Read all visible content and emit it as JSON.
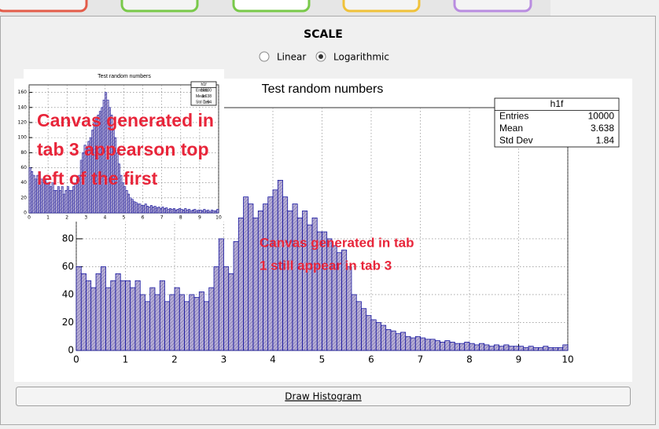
{
  "scale": {
    "title": "SCALE",
    "options": [
      "Linear",
      "Logarithmic"
    ],
    "selected": 1
  },
  "canvas_main": {
    "type": "histogram",
    "title": "Test random numbers",
    "bins": [
      0,
      0.1,
      0.2,
      0.3,
      0.4,
      0.5,
      0.6,
      0.7,
      0.8,
      0.9,
      1,
      1.1,
      1.2,
      1.3,
      1.4,
      1.5,
      1.6,
      1.7,
      1.8,
      1.9,
      2,
      2.1,
      2.2,
      2.3,
      2.4,
      2.5,
      2.6,
      2.7,
      2.8,
      2.9,
      3,
      3.1,
      3.2,
      3.3,
      3.4,
      3.5,
      3.6,
      3.7,
      3.8,
      3.9,
      4,
      4.1,
      4.2,
      4.3,
      4.4,
      4.5,
      4.6,
      4.7,
      4.8,
      4.9,
      5,
      5.1,
      5.2,
      5.3,
      5.4,
      5.5,
      5.6,
      5.7,
      5.8,
      5.9,
      6,
      6.1,
      6.2,
      6.3,
      6.4,
      6.5,
      6.6,
      6.7,
      6.8,
      6.9,
      7,
      7.1,
      7.2,
      7.3,
      7.4,
      7.5,
      7.6,
      7.7,
      7.8,
      7.9,
      8,
      8.1,
      8.2,
      8.3,
      8.4,
      8.5,
      8.6,
      8.7,
      8.8,
      8.9,
      9,
      9.1,
      9.2,
      9.3,
      9.4,
      9.5,
      9.6,
      9.7,
      9.8,
      9.9,
      10
    ],
    "counts": [
      60,
      55,
      50,
      45,
      55,
      60,
      45,
      50,
      55,
      50,
      50,
      45,
      50,
      40,
      35,
      45,
      40,
      50,
      35,
      40,
      45,
      40,
      35,
      40,
      38,
      42,
      35,
      45,
      60,
      80,
      60,
      55,
      78,
      95,
      110,
      105,
      95,
      100,
      105,
      110,
      115,
      122,
      110,
      100,
      105,
      95,
      100,
      90,
      95,
      85,
      85,
      80,
      75,
      70,
      72,
      60,
      40,
      35,
      30,
      25,
      22,
      20,
      18,
      15,
      14,
      12,
      13,
      10,
      9,
      10,
      9,
      8,
      8,
      7,
      6,
      7,
      6,
      5,
      5,
      6,
      5,
      4,
      5,
      4,
      3,
      4,
      3,
      4,
      3,
      3,
      3,
      2,
      3,
      2,
      2,
      3,
      2,
      2,
      2,
      4
    ],
    "xlim": [
      0,
      10
    ],
    "ylim": [
      0,
      174
    ],
    "xticks": [
      0,
      1,
      2,
      3,
      4,
      5,
      6,
      7,
      8,
      9,
      10
    ],
    "yticks": [
      0,
      20,
      40,
      60,
      80
    ],
    "grid": true,
    "fill": "#a79ccb",
    "line": "#000099",
    "stats": {
      "name": "h1f",
      "rows": [
        {
          "label": "Entries",
          "value": 10000
        },
        {
          "label": "Mean",
          "value": 3.638
        },
        {
          "label": "Std Dev",
          "value": 1.84
        }
      ]
    }
  },
  "canvas_small": {
    "type": "histogram",
    "title": "Test random numbers",
    "bins": [
      0,
      0.1,
      0.2,
      0.3,
      0.4,
      0.5,
      0.6,
      0.7,
      0.8,
      0.9,
      1,
      1.1,
      1.2,
      1.3,
      1.4,
      1.5,
      1.6,
      1.7,
      1.8,
      1.9,
      2,
      2.1,
      2.2,
      2.3,
      2.4,
      2.5,
      2.6,
      2.7,
      2.8,
      2.9,
      3,
      3.1,
      3.2,
      3.3,
      3.4,
      3.5,
      3.6,
      3.7,
      3.8,
      3.9,
      4,
      4.1,
      4.2,
      4.3,
      4.4,
      4.5,
      4.6,
      4.7,
      4.8,
      4.9,
      5,
      5.1,
      5.2,
      5.3,
      5.4,
      5.5,
      5.6,
      5.7,
      5.8,
      5.9,
      6,
      6.1,
      6.2,
      6.3,
      6.4,
      6.5,
      6.6,
      6.7,
      6.8,
      6.9,
      7,
      7.1,
      7.2,
      7.3,
      7.4,
      7.5,
      7.6,
      7.7,
      7.8,
      7.9,
      8,
      8.1,
      8.2,
      8.3,
      8.4,
      8.5,
      8.6,
      8.7,
      8.8,
      8.9,
      9,
      9.1,
      9.2,
      9.3,
      9.4,
      9.5,
      9.6,
      9.7,
      9.8,
      9.9,
      10
    ],
    "counts": [
      60,
      55,
      50,
      45,
      50,
      55,
      45,
      40,
      45,
      40,
      40,
      35,
      40,
      30,
      30,
      35,
      30,
      35,
      25,
      30,
      35,
      30,
      30,
      35,
      40,
      45,
      50,
      70,
      80,
      90,
      85,
      95,
      100,
      110,
      120,
      125,
      130,
      135,
      140,
      150,
      160,
      150,
      140,
      130,
      110,
      100,
      80,
      65,
      50,
      40,
      35,
      30,
      25,
      20,
      18,
      15,
      14,
      12,
      12,
      10,
      10,
      12,
      9,
      8,
      10,
      8,
      9,
      7,
      8,
      6,
      8,
      6,
      7,
      5,
      6,
      5,
      6,
      4,
      5,
      6,
      5,
      4,
      6,
      4,
      5,
      3,
      4,
      5,
      3,
      4,
      4,
      3,
      5,
      3,
      4,
      2,
      4,
      3,
      3,
      5
    ],
    "xlim": [
      0,
      10
    ],
    "ylim": [
      0,
      170
    ],
    "xticks": [
      0,
      1,
      2,
      3,
      4,
      5,
      6,
      7,
      8,
      9,
      10
    ],
    "yticks": [
      0,
      20,
      40,
      60,
      80,
      100,
      120,
      140,
      160
    ],
    "grid": true,
    "fill": "#a79ccb",
    "line": "#000099",
    "stats": {
      "name": "h1f",
      "rows": [
        {
          "label": "Entries",
          "value": 10000
        },
        {
          "label": "Mean",
          "value": 3.638
        },
        {
          "label": "Std Dev",
          "value": 1.84
        }
      ]
    }
  },
  "annotations": [
    {
      "lines": [
        "Canvas generated in",
        "tab 3 appearson top",
        "left of the first"
      ]
    },
    {
      "lines": [
        "Canvas generated in tab",
        "1 still appear in tab 3"
      ]
    }
  ],
  "button": "Draw Histogram"
}
